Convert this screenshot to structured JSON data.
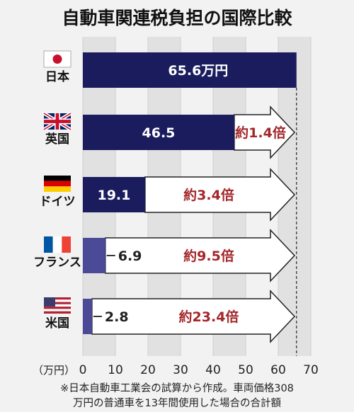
{
  "chart_data": {
    "type": "bar",
    "title": "自動車関連税負担の国際比較",
    "unit_label": "（万円）",
    "xlim": [
      0,
      70
    ],
    "ticks": [
      0,
      10,
      20,
      30,
      40,
      50,
      60,
      70
    ],
    "grid": true,
    "categories": [
      "日本",
      "英国",
      "ドイツ",
      "フランス",
      "米国"
    ],
    "values": [
      65.6,
      46.5,
      19.1,
      6.9,
      2.8
    ],
    "value_labels": [
      "65.6万円",
      "46.5",
      "19.1",
      "6.9",
      "2.8"
    ],
    "ratios": [
      "",
      "約1.4倍",
      "約3.4倍",
      "約9.5倍",
      "約23.4倍"
    ],
    "flags": [
      "japan-flag",
      "uk-flag",
      "germany-flag",
      "france-flag",
      "usa-flag"
    ],
    "colors": {
      "bar_dark": "#1a1c5e",
      "bar_light": "#4b4a96",
      "ratio": "#a3262a",
      "arrow_fill": "#ffffff",
      "stripe": "#e1e1e1"
    },
    "note_lines": [
      "※日本自動車工業会の試算から作成。車両価格308",
      "万円の普通車を13年間使用した場合の合計額"
    ]
  }
}
